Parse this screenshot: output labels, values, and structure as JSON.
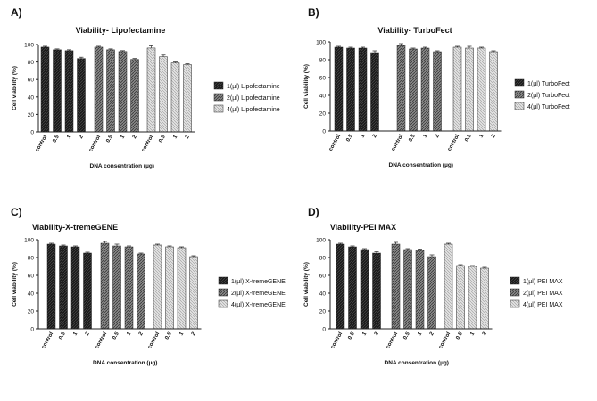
{
  "chart_data": [
    {
      "type": "bar",
      "panel_label": "A)",
      "title": "Viability- Lipofectamine",
      "xlabel": "DNA consentration (µg)",
      "ylabel": "Cell viability (%)",
      "ylim": [
        0,
        100
      ],
      "yticks": [
        "0",
        "20",
        "40",
        "60",
        "80",
        "100"
      ],
      "categories": [
        "control",
        "0.5",
        "1",
        "2"
      ],
      "series": [
        {
          "name": "1(µl) Lipofectamine",
          "values": [
            97,
            94,
            93,
            84
          ],
          "errors": [
            1,
            1,
            1,
            1.5
          ]
        },
        {
          "name": "2(µl) Lipofectamine",
          "values": [
            97,
            94,
            92,
            83
          ],
          "errors": [
            1,
            1,
            1,
            1
          ]
        },
        {
          "name": "4(µl) Lipofectamine",
          "values": [
            96,
            86,
            79,
            77
          ],
          "errors": [
            2.5,
            2,
            1,
            1
          ]
        }
      ]
    },
    {
      "type": "bar",
      "panel_label": "B)",
      "title": "Viability- TurboFect",
      "xlabel": "DNA consentration (µg)",
      "ylabel": "Cell viability (%)",
      "ylim": [
        0,
        100
      ],
      "yticks": [
        "0",
        "20",
        "40",
        "60",
        "80",
        "100"
      ],
      "categories": [
        "control",
        "0.5",
        "1",
        "2"
      ],
      "series": [
        {
          "name": "1(µl) TurboFect",
          "values": [
            94,
            93,
            93,
            88
          ],
          "errors": [
            1,
            1,
            1,
            2
          ]
        },
        {
          "name": "2(µl) TurboFect",
          "values": [
            96,
            92,
            93,
            89
          ],
          "errors": [
            2,
            1,
            1,
            1
          ]
        },
        {
          "name": "4(µl) TurboFect",
          "values": [
            94,
            93,
            93,
            89
          ],
          "errors": [
            1,
            2,
            1,
            1
          ]
        }
      ]
    },
    {
      "type": "bar",
      "panel_label": "C)",
      "title": "Viability-X-tremeGENE",
      "xlabel": "DNA consentration (µg)",
      "ylabel": "Cell viability (%)",
      "ylim": [
        0,
        100
      ],
      "yticks": [
        "0",
        "20",
        "40",
        "60",
        "80",
        "100"
      ],
      "categories": [
        "control",
        "0.5",
        "1",
        "2"
      ],
      "series": [
        {
          "name": "1(µl) X-tremeGENE",
          "values": [
            95,
            93,
            92,
            85
          ],
          "errors": [
            1,
            1,
            1,
            1
          ]
        },
        {
          "name": "2(µl) X-tremeGENE",
          "values": [
            96,
            93,
            92,
            84
          ],
          "errors": [
            2,
            2,
            1,
            1
          ]
        },
        {
          "name": "4(µl) X-tremeGENE",
          "values": [
            94,
            92,
            91,
            81
          ],
          "errors": [
            1,
            1,
            1,
            1
          ]
        }
      ]
    },
    {
      "type": "bar",
      "panel_label": "D)",
      "title": "Viability-PEI MAX",
      "xlabel": "DNA consentration (µg)",
      "ylabel": "Cell viability (%)",
      "ylim": [
        0,
        100
      ],
      "yticks": [
        "0",
        "20",
        "40",
        "60",
        "80",
        "100"
      ],
      "categories": [
        "control",
        "0.5",
        "1",
        "2"
      ],
      "series": [
        {
          "name": "1(µl) PEI MAX",
          "values": [
            95,
            92,
            89,
            85
          ],
          "errors": [
            1,
            1,
            1,
            1.5
          ]
        },
        {
          "name": "2(µl) PEI MAX",
          "values": [
            95,
            89,
            88,
            81
          ],
          "errors": [
            2,
            1,
            1.5,
            2
          ]
        },
        {
          "name": "4(µl) PEI MAX",
          "values": [
            95,
            71,
            70,
            68
          ],
          "errors": [
            1,
            1,
            1,
            1
          ]
        }
      ]
    }
  ],
  "colors": {
    "series_1_fill": "#1e1e1e",
    "series_2_fill": "#7a7a7a",
    "series_3_fill": "#d4d4d4",
    "axis": "#222222",
    "text": "#111111"
  }
}
